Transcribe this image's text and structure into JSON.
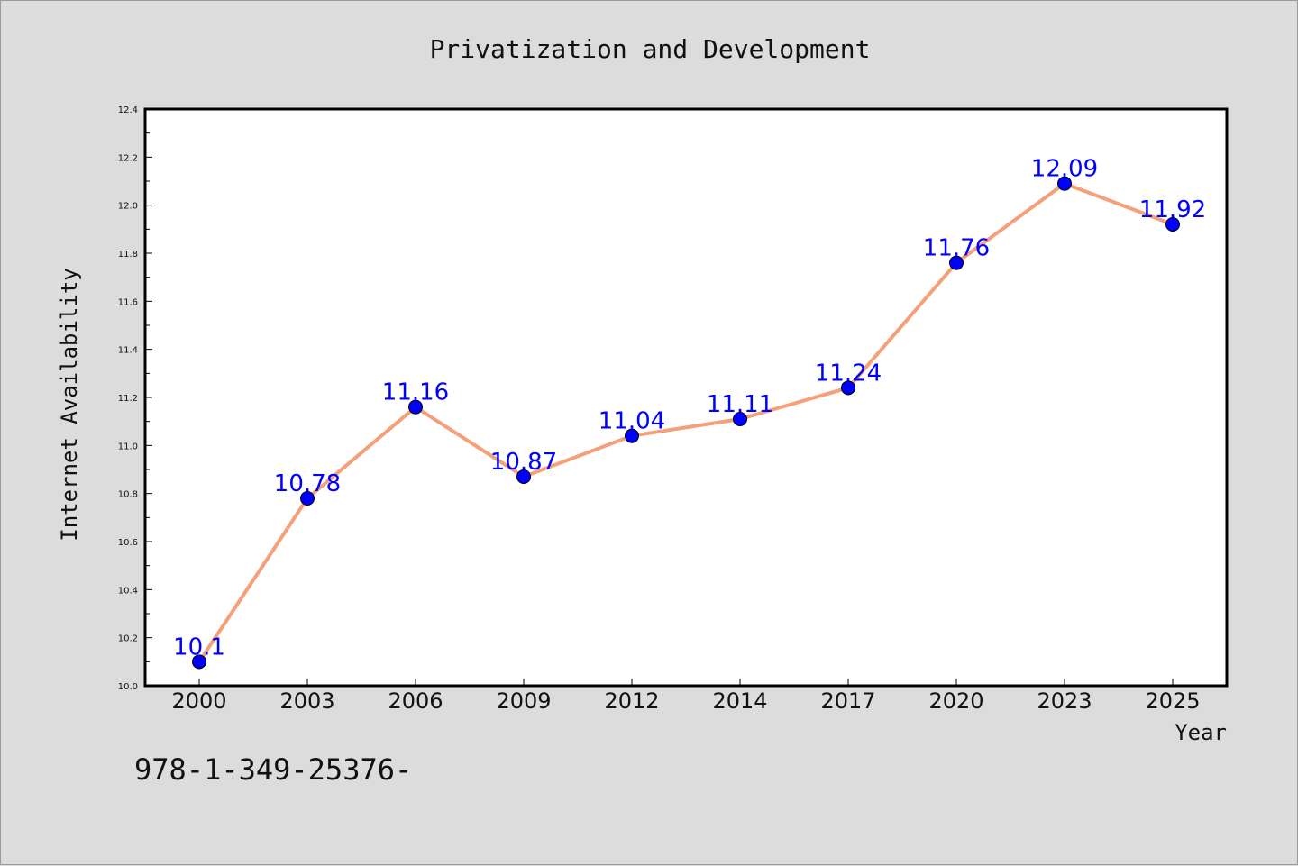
{
  "chart_data": {
    "type": "line",
    "title": "Privatization and Development",
    "xlabel": "Year",
    "ylabel": "Internet Availability",
    "categories": [
      "2000",
      "2003",
      "2006",
      "2009",
      "2012",
      "2014",
      "2017",
      "2020",
      "2023",
      "2025"
    ],
    "series": [
      {
        "values": [
          10.1,
          10.78,
          11.16,
          10.87,
          11.04,
          11.11,
          11.24,
          11.76,
          12.09,
          11.92
        ],
        "color": "#f4a07a",
        "marker_color": "#0000ff"
      }
    ],
    "data_labels": [
      "10.1",
      "10.78",
      "11.16",
      "10.87",
      "11.04",
      "11.11",
      "11.24",
      "11.76",
      "12.09",
      "11.92"
    ],
    "ylim": [
      10.0,
      12.4
    ],
    "yticks": [
      "10.0",
      "10.2",
      "10.4",
      "10.6",
      "10.8",
      "11.0",
      "11.2",
      "11.4",
      "11.6",
      "11.8",
      "12.0",
      "12.2",
      "12.4"
    ],
    "grid": false,
    "legend": "none",
    "background": "#dcdcdc",
    "plot_background": "#ffffff",
    "label_color": "#0000ff"
  },
  "footer_text": "978-1-349-25376-"
}
